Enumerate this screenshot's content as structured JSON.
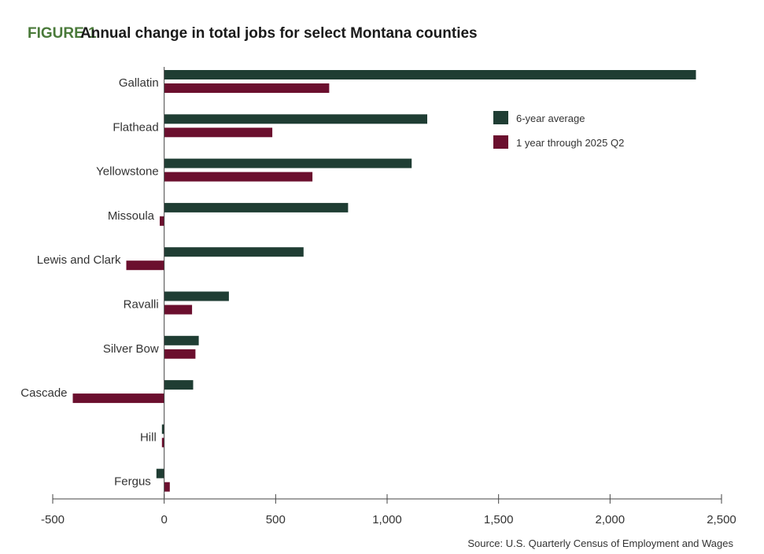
{
  "figure": {
    "label": "FIGURE 1",
    "title": "Annual change in total jobs for select Montana counties",
    "label_color": "#4a7a3a",
    "title_color": "#1a1a1a"
  },
  "source": "Source:  U.S. Quarterly Census of Employment and Wages",
  "chart_data": {
    "type": "bar",
    "orientation": "horizontal",
    "categories": [
      "Gallatin",
      "Flathead",
      "Yellowstone",
      "Missoula",
      "Lewis and Clark",
      "Ravalli",
      "Silver Bow",
      "Cascade",
      "Hill",
      "Fergus"
    ],
    "series": [
      {
        "name": "6-year average",
        "color": "#1f3d33",
        "values": [
          2385,
          1180,
          1110,
          825,
          625,
          290,
          155,
          130,
          -10,
          -35
        ]
      },
      {
        "name": "1 year through 2025 Q2",
        "color": "#6b0f2e",
        "values": [
          740,
          485,
          665,
          -20,
          -170,
          125,
          140,
          -410,
          -10,
          25
        ]
      }
    ],
    "xlim": [
      -500,
      2500
    ],
    "xticks": [
      -500,
      0,
      500,
      1000,
      1500,
      2000,
      2500
    ],
    "xtick_labels": [
      "-500",
      "0",
      "500",
      "1,000",
      "1,500",
      "2,000",
      "2,500"
    ],
    "grid": false,
    "legend_position": "top-right"
  }
}
